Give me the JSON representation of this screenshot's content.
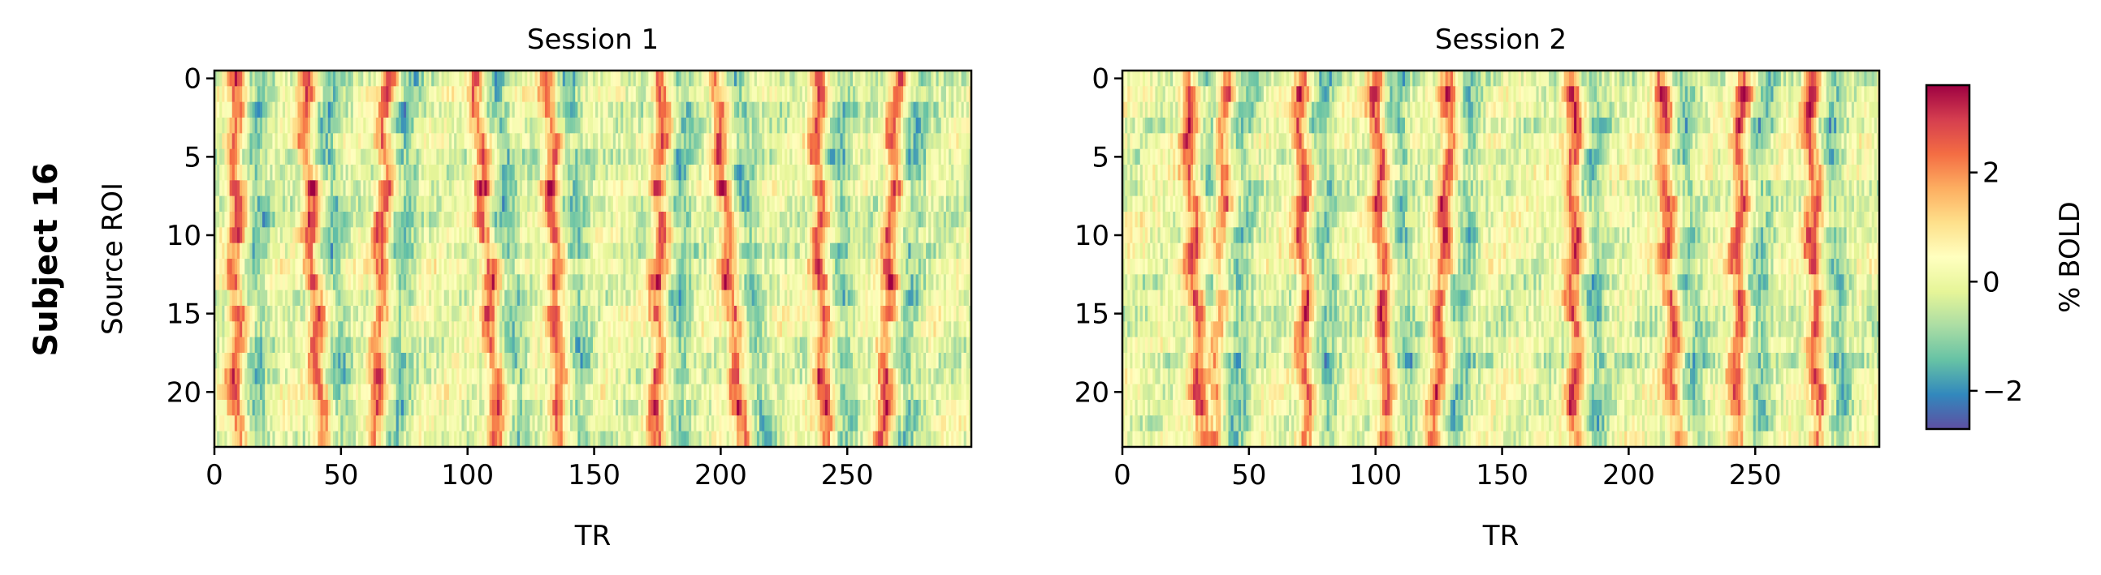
{
  "figure": {
    "row_label": "Subject 16"
  },
  "chart_data": [
    {
      "type": "heatmap",
      "title": "Session 1",
      "xlabel": "TR",
      "ylabel": "Source ROI",
      "xlim": [
        0,
        299
      ],
      "ylim": [
        23.5,
        -0.5
      ],
      "n_rows": 24,
      "n_cols": 300,
      "x_ticks": [
        0,
        50,
        100,
        150,
        200,
        250
      ],
      "y_ticks": [
        0,
        5,
        10,
        15,
        20
      ],
      "band_centers": [
        8,
        35,
        68,
        103,
        132,
        177,
        198,
        238,
        270
      ],
      "band_drift": [
        0,
        0.6,
        -0.4,
        0.8,
        0.4,
        -0.2,
        0.9,
        0.3,
        -0.5
      ],
      "value_range": [
        -2.7,
        3.6
      ],
      "seed": 16
    },
    {
      "type": "heatmap",
      "title": "Session 2",
      "xlabel": "TR",
      "ylabel": "",
      "xlim": [
        0,
        299
      ],
      "ylim": [
        23.5,
        -0.5
      ],
      "n_rows": 24,
      "n_cols": 300,
      "x_ticks": [
        0,
        50,
        100,
        150,
        200,
        250
      ],
      "y_ticks": [
        0,
        5,
        10,
        15,
        20
      ],
      "band_centers": [
        25,
        40,
        70,
        100,
        130,
        178,
        213,
        245,
        272
      ],
      "band_drift": [
        0.5,
        -0.3,
        0.2,
        0.4,
        -0.6,
        0.1,
        0.5,
        -0.2,
        0.3
      ],
      "value_range": [
        -2.7,
        3.6
      ],
      "seed": 32
    }
  ],
  "colorbar": {
    "label": "% BOLD",
    "range": [
      -2.7,
      3.6
    ],
    "ticks": [
      -2,
      0,
      2
    ],
    "tick_labels": [
      "−2",
      "0",
      "2"
    ],
    "colormap": "Spectral_r",
    "stops": [
      "#5e4fa2",
      "#3288bd",
      "#66c2a5",
      "#abdda4",
      "#e6f598",
      "#ffffbf",
      "#fee08b",
      "#fdae61",
      "#f46d43",
      "#d53e4f",
      "#9e0142"
    ]
  }
}
